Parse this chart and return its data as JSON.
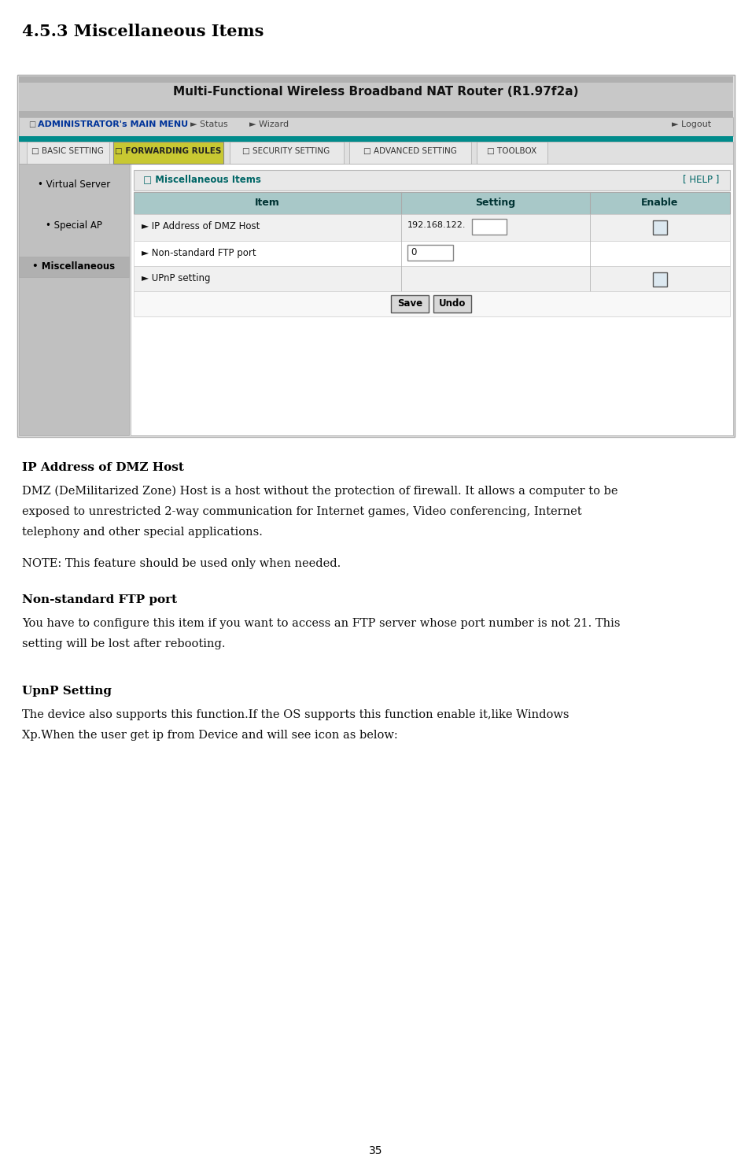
{
  "page_title": "4.5.3 Miscellaneous Items",
  "page_number": "35",
  "router_title": "Multi-Functional Wireless Broadband NAT Router (R1.97f2a)",
  "nav_tabs": [
    "BASIC SETTING",
    "FORWARDING RULES",
    "SECURITY SETTING",
    "ADVANCED SETTING",
    "TOOLBOX"
  ],
  "active_tab": "FORWARDING RULES",
  "left_menu": [
    "Virtual Server",
    "Special AP",
    "Miscellaneous"
  ],
  "active_left": "Miscellaneous",
  "section_title": "Miscellaneous Items",
  "help_text": "[ HELP ]",
  "body_sections": [
    {
      "heading": "IP Address of DMZ Host",
      "paragraphs": [
        "DMZ (DeMilitarized Zone) Host is a host without the protection of firewall. It allows a computer to be",
        "exposed to unrestricted 2-way communication for Internet games, Video conferencing, Internet",
        "telephony and other special applications."
      ],
      "note": "NOTE: This feature should be used only when needed."
    },
    {
      "heading": "Non-standard FTP port",
      "paragraphs": [
        "You have to configure this item if you want to access an FTP server whose port number is not 21. This",
        "setting will be lost after rebooting."
      ],
      "note": ""
    },
    {
      "heading": "UpnP Setting",
      "paragraphs": [
        "The device also supports this function.If the OS supports this function enable it,like Windows",
        "Xp.When the user get ip from Device and will see icon as below:"
      ],
      "note": ""
    }
  ],
  "bg_color": "#ffffff",
  "screenshot_outer_bg": "#c8c8c8",
  "screenshot_header_bg": "#b8b8b8",
  "teal_bar_color": "#008b8b",
  "tab_row_bg": "#d8d8d8",
  "active_tab_bg": "#c8c832",
  "left_panel_bg": "#c0c0c0",
  "main_panel_bg": "#ffffff",
  "section_hdr_bg": "#e8e8e8",
  "table_hdr_bg": "#a8c8c8",
  "row0_bg": "#f0f0f0",
  "row1_bg": "#ffffff",
  "teal_text": "#006666",
  "nav_text_color": "#003399",
  "border_color": "#888888"
}
